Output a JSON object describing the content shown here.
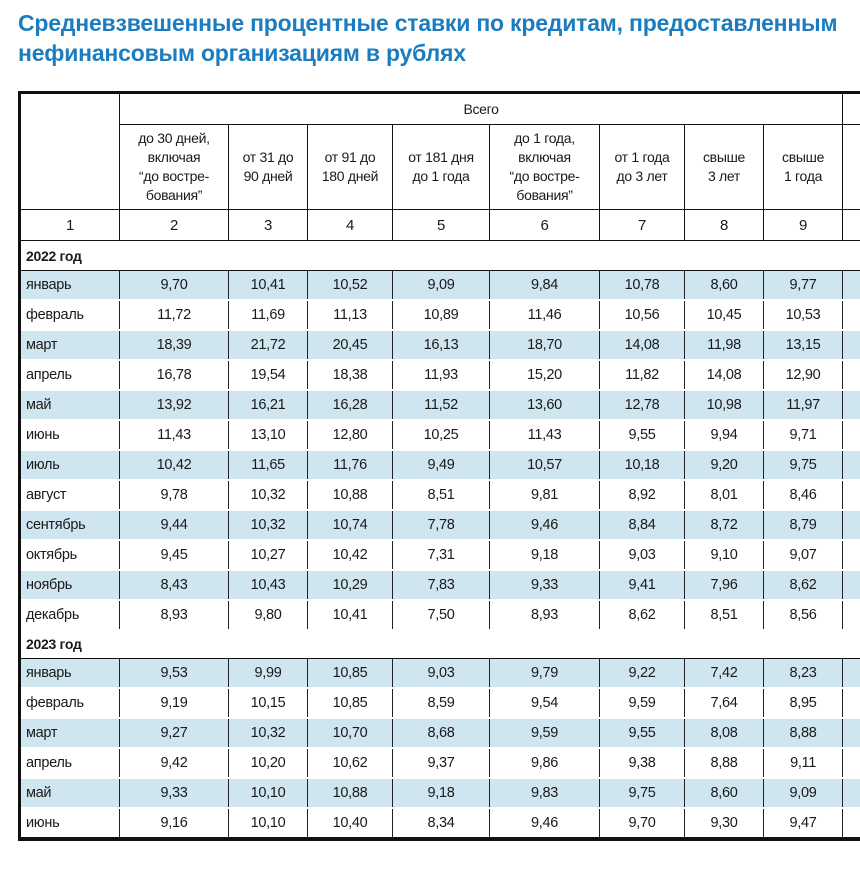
{
  "title_line1": "Средневзвешенные процентные ставки по кредитам, предоставленным",
  "title_line2": "нефинансовым организациям в рублях",
  "group_header": "Всего",
  "columns": [
    "до 30 дней,\nвключая\n“до востре-\nбования”",
    "от 31 до\n90 дней",
    "от 91 до\n180 дней",
    "от 181 дня\nдо 1 года",
    "до 1 года,\nвключая\n“до востре-\nбования”",
    "от 1 года\nдо 3 лет",
    "свыше\n3 лет",
    "свыше\n1 года"
  ],
  "column_numbers": [
    "1",
    "2",
    "3",
    "4",
    "5",
    "6",
    "7",
    "8",
    "9"
  ],
  "sections": [
    {
      "year": "2022 год",
      "rows": [
        [
          "январь",
          "9,70",
          "10,41",
          "10,52",
          "9,09",
          "9,84",
          "10,78",
          "8,60",
          "9,77"
        ],
        [
          "февраль",
          "11,72",
          "11,69",
          "11,13",
          "10,89",
          "11,46",
          "10,56",
          "10,45",
          "10,53"
        ],
        [
          "март",
          "18,39",
          "21,72",
          "20,45",
          "16,13",
          "18,70",
          "14,08",
          "11,98",
          "13,15"
        ],
        [
          "апрель",
          "16,78",
          "19,54",
          "18,38",
          "11,93",
          "15,20",
          "11,82",
          "14,08",
          "12,90"
        ],
        [
          "май",
          "13,92",
          "16,21",
          "16,28",
          "11,52",
          "13,60",
          "12,78",
          "10,98",
          "11,97"
        ],
        [
          "июнь",
          "11,43",
          "13,10",
          "12,80",
          "10,25",
          "11,43",
          "9,55",
          "9,94",
          "9,71"
        ],
        [
          "июль",
          "10,42",
          "11,65",
          "11,76",
          "9,49",
          "10,57",
          "10,18",
          "9,20",
          "9,75"
        ],
        [
          "август",
          "9,78",
          "10,32",
          "10,88",
          "8,51",
          "9,81",
          "8,92",
          "8,01",
          "8,46"
        ],
        [
          "сентябрь",
          "9,44",
          "10,32",
          "10,74",
          "7,78",
          "9,46",
          "8,84",
          "8,72",
          "8,79"
        ],
        [
          "октябрь",
          "9,45",
          "10,27",
          "10,42",
          "7,31",
          "9,18",
          "9,03",
          "9,10",
          "9,07"
        ],
        [
          "ноябрь",
          "8,43",
          "10,43",
          "10,29",
          "7,83",
          "9,33",
          "9,41",
          "7,96",
          "8,62"
        ],
        [
          "декабрь",
          "8,93",
          "9,80",
          "10,41",
          "7,50",
          "8,93",
          "8,62",
          "8,51",
          "8,56"
        ]
      ]
    },
    {
      "year": "2023 год",
      "rows": [
        [
          "январь",
          "9,53",
          "9,99",
          "10,85",
          "9,03",
          "9,79",
          "9,22",
          "7,42",
          "8,23"
        ],
        [
          "февраль",
          "9,19",
          "10,15",
          "10,85",
          "8,59",
          "9,54",
          "9,59",
          "7,64",
          "8,95"
        ],
        [
          "март",
          "9,27",
          "10,32",
          "10,70",
          "8,68",
          "9,59",
          "9,55",
          "8,08",
          "8,88"
        ],
        [
          "апрель",
          "9,42",
          "10,20",
          "10,62",
          "9,37",
          "9,86",
          "9,38",
          "8,88",
          "9,11"
        ],
        [
          "май",
          "9,33",
          "10,10",
          "10,88",
          "9,18",
          "9,83",
          "9,75",
          "8,60",
          "9,09"
        ],
        [
          "июнь",
          "9,16",
          "10,10",
          "10,40",
          "8,34",
          "9,46",
          "9,70",
          "9,30",
          "9,47"
        ]
      ]
    }
  ],
  "colors": {
    "title": "#1b7dbf",
    "row_alt": "#cfe5f0"
  }
}
